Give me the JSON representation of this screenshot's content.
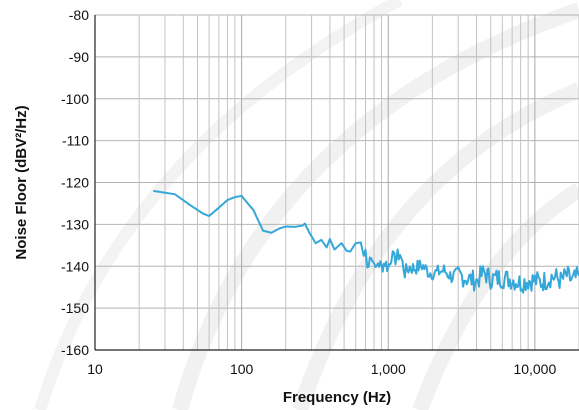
{
  "chart_data": {
    "type": "line",
    "title": "",
    "xlabel": "Frequency (Hz)",
    "ylabel": "Noise Floor (dBV²/Hz)",
    "x_scale": "log",
    "xlim": [
      10,
      20000
    ],
    "ylim": [
      -160,
      -80
    ],
    "x_ticks": [
      {
        "value": 10,
        "label": "10"
      },
      {
        "value": 100,
        "label": "100"
      },
      {
        "value": 1000,
        "label": "1,000"
      },
      {
        "value": 10000,
        "label": "10,000"
      }
    ],
    "y_ticks": [
      {
        "value": -80,
        "label": "-80"
      },
      {
        "value": -90,
        "label": "-90"
      },
      {
        "value": -100,
        "label": "-100"
      },
      {
        "value": -110,
        "label": "-110"
      },
      {
        "value": -120,
        "label": "-120"
      },
      {
        "value": -130,
        "label": "-130"
      },
      {
        "value": -140,
        "label": "-140"
      },
      {
        "value": -150,
        "label": "-150"
      },
      {
        "value": -160,
        "label": "-160"
      }
    ],
    "grid": true,
    "legend": "none",
    "series": [
      {
        "color": "#35a7d8",
        "x": [
          25,
          35,
          45,
          55,
          60,
          70,
          80,
          90,
          100,
          110,
          120,
          140,
          160,
          180,
          200,
          230,
          260,
          270,
          290,
          320,
          350,
          380,
          400,
          430,
          480,
          520,
          550,
          600,
          650,
          680,
          700,
          720,
          750,
          780,
          800,
          820,
          850,
          900,
          950,
          1000,
          1050,
          1100,
          1200,
          1300,
          1400,
          1500,
          1700,
          1900,
          2100,
          2400,
          2700,
          3000,
          3500,
          4000,
          4500,
          5000,
          6000,
          7000,
          8000,
          9000,
          10000,
          11000,
          12000,
          13000,
          14000,
          15000,
          16500,
          18000,
          20000
        ],
        "values": [
          -122,
          -122.8,
          -125.5,
          -127.5,
          -128,
          -126,
          -124.2,
          -123.5,
          -123.2,
          -125,
          -126.5,
          -131.5,
          -132,
          -131,
          -130.5,
          -130.6,
          -130.3,
          -129.8,
          -132,
          -134.5,
          -133.7,
          -135.5,
          -133.5,
          -136,
          -134.5,
          -136.3,
          -136.5,
          -134.5,
          -134.3,
          -137.5,
          -136,
          -140.5,
          -137,
          -138.8,
          -137.8,
          -141.5,
          -139,
          -140.2,
          -139,
          -140.5,
          -137.4,
          -138.5,
          -137,
          -141.5,
          -140.2,
          -140.5,
          -139.8,
          -141.5,
          -141.6,
          -141,
          -142.5,
          -142,
          -143,
          -143.5,
          -141.5,
          -143,
          -142.8,
          -143.2,
          -144,
          -143.4,
          -143.4,
          -143.8,
          -143.3,
          -142.5,
          -142.7,
          -143.5,
          -142.2,
          -143.5,
          -142.2
        ]
      }
    ]
  }
}
